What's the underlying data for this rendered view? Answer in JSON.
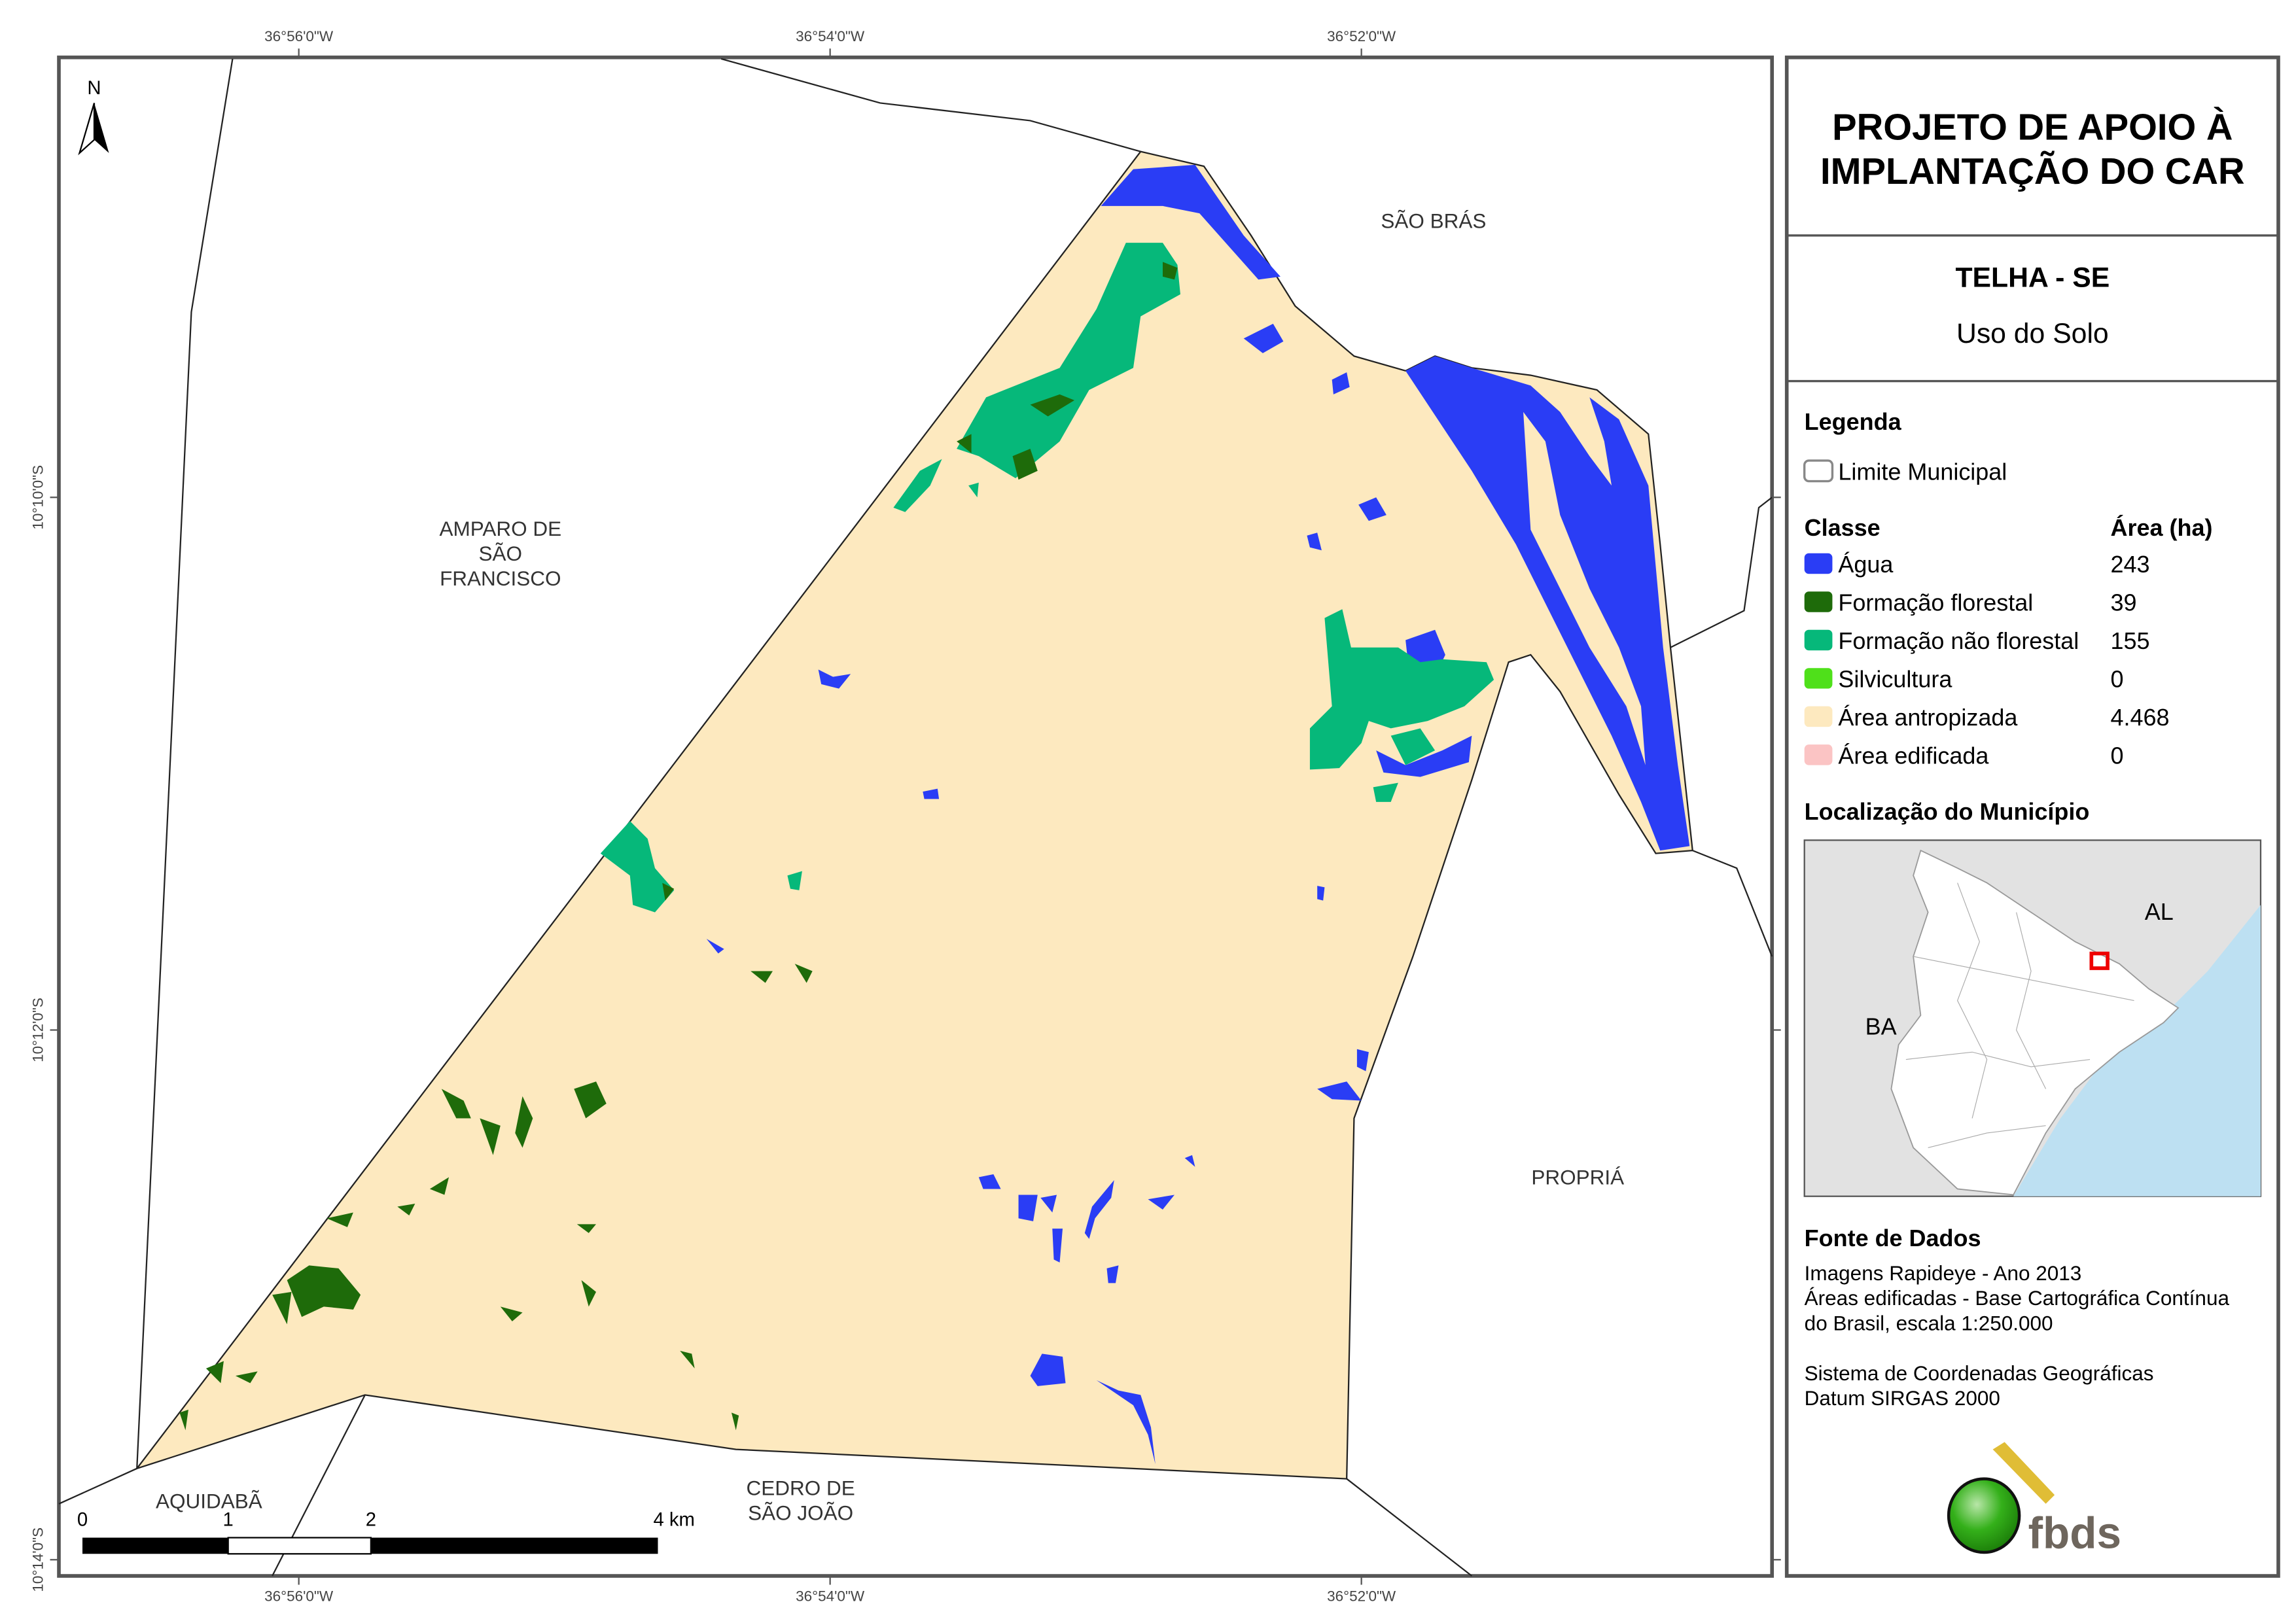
{
  "header": {
    "title_line1": "PROJETO DE APOIO À",
    "title_line2": "IMPLANTAÇÃO DO CAR",
    "municipality": "TELHA - SE",
    "theme": "Uso do Solo"
  },
  "legend": {
    "title": "Legenda",
    "boundary_label": "Limite Municipal",
    "class_header": "Classe",
    "area_header": "Área (ha)",
    "classes": [
      {
        "label": "Água",
        "area": "243",
        "color": "#2a3df5"
      },
      {
        "label": "Formação florestal",
        "area": "39",
        "color": "#1e6b0a"
      },
      {
        "label": "Formação não florestal",
        "area": "155",
        "color": "#06b87a"
      },
      {
        "label": "Silvicultura",
        "area": "0",
        "color": "#4fe01a"
      },
      {
        "label": "Área antropizada",
        "area": "4.468",
        "color": "#fde9bf"
      },
      {
        "label": "Área edificada",
        "area": "0",
        "color": "#fbc4c4"
      }
    ]
  },
  "locator": {
    "title": "Localização do Município",
    "label_al": "AL",
    "label_ba": "BA"
  },
  "sources": {
    "title": "Fonte de Dados",
    "lines": [
      "Imagens Rapideye - Ano 2013",
      "Áreas edificadas - Base Cartográfica Contínua",
      "do Brasil, escala 1:250.000",
      "Sistema de Coordenadas Geográficas",
      "Datum SIRGAS 2000"
    ]
  },
  "logo": {
    "text": "fbds"
  },
  "map": {
    "north": "N",
    "neighbors": {
      "sao_bras": "SÃO BRÁS",
      "amparo_1": "AMPARO DE",
      "amparo_2": "SÃO",
      "amparo_3": "FRANCISCO",
      "propria": "PROPRIÁ",
      "aquidaba": "AQUIDABÃ",
      "cedro_1": "CEDRO DE",
      "cedro_2": "SÃO JOÃO"
    },
    "lon_ticks": [
      "36°56'0\"W",
      "36°54'0\"W",
      "36°52'0\"W"
    ],
    "lat_ticks": [
      "10°10'0\"S",
      "10°12'0\"S",
      "10°14'0\"S"
    ],
    "scale": {
      "t0": "0",
      "t1": "1",
      "t2": "2",
      "t4": "4 km"
    }
  }
}
